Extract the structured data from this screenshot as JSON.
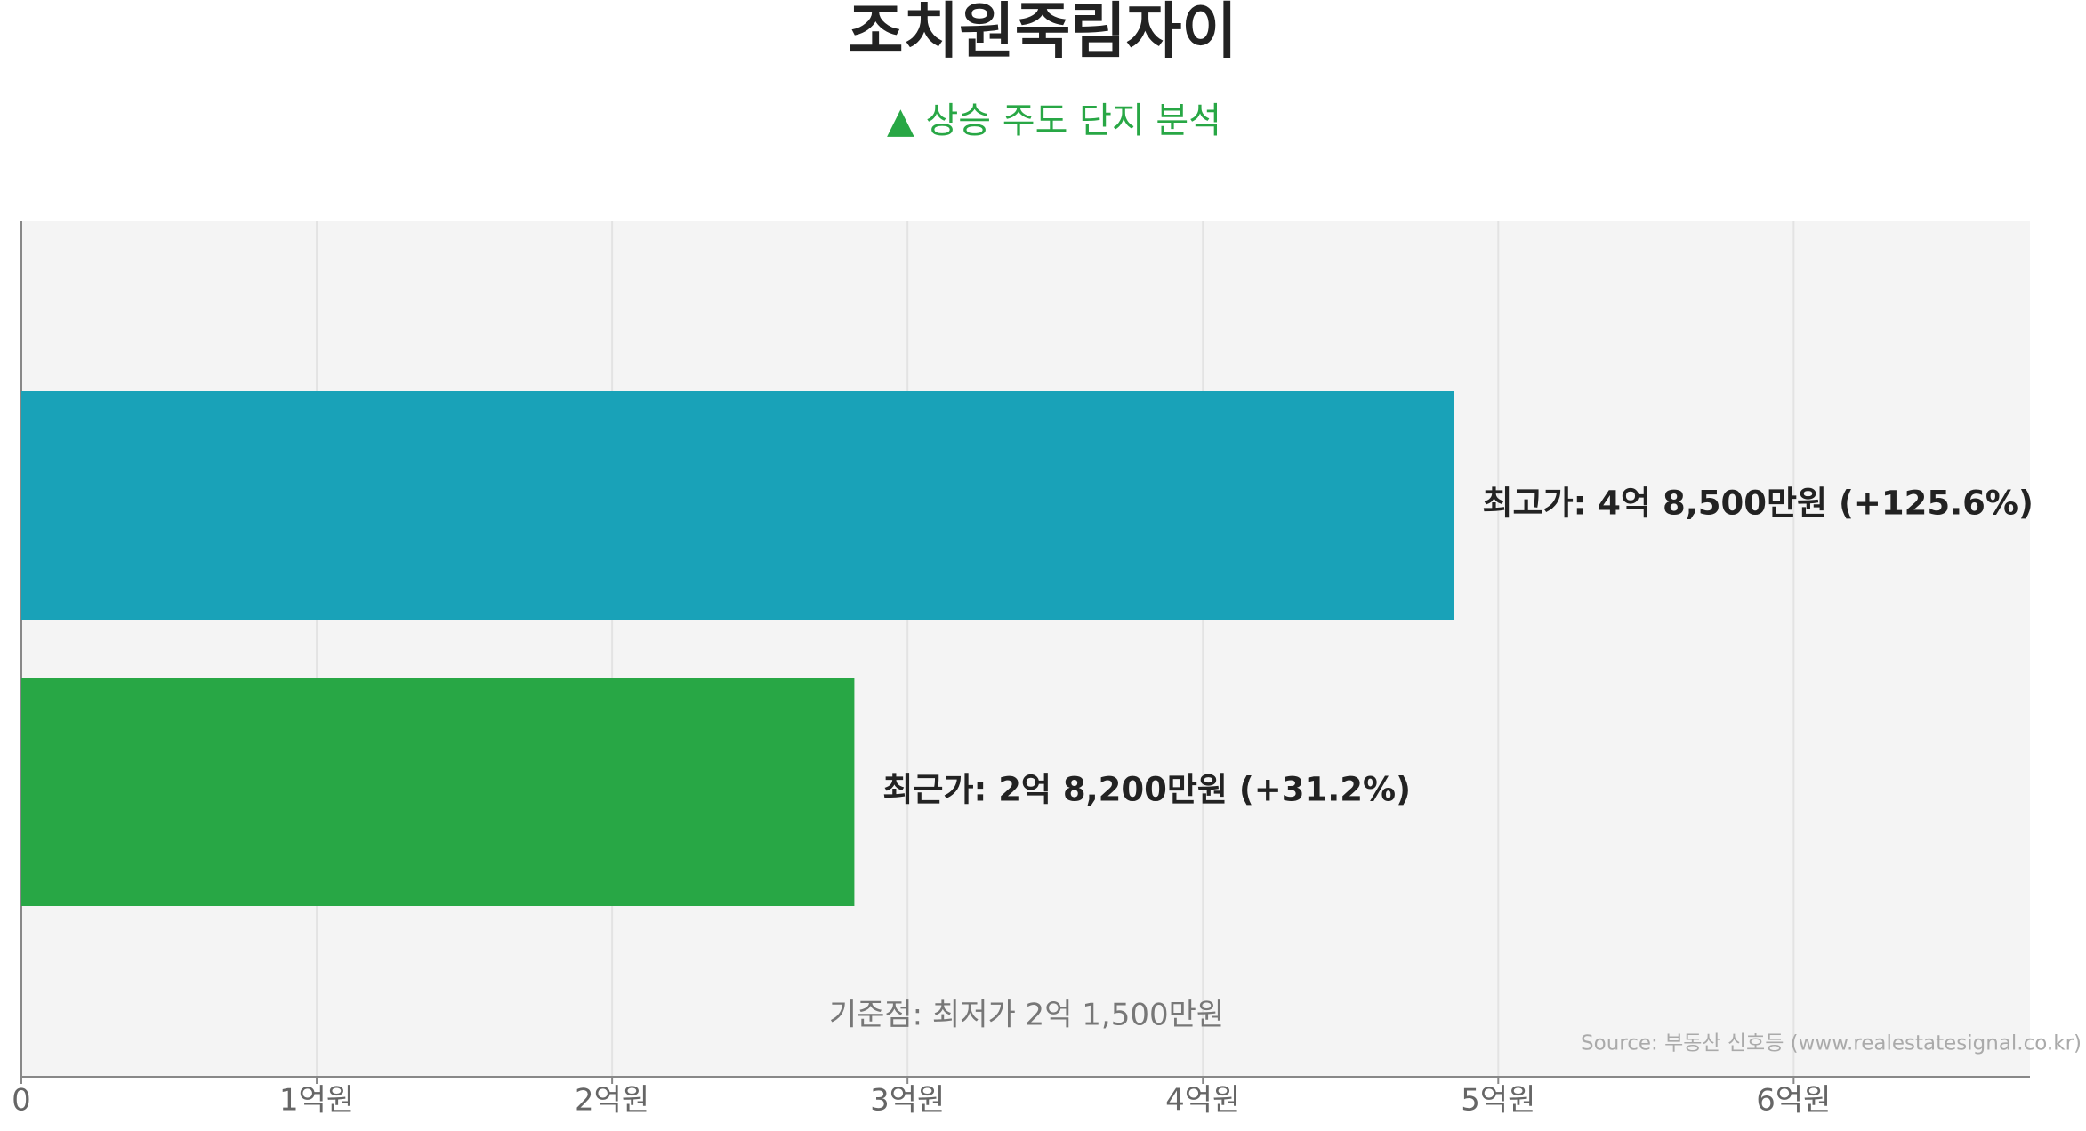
{
  "chart_data": {
    "type": "hbar",
    "title": "조치원죽림자이",
    "subtitle": "▲ 상승 주도 단지 분석",
    "categories": [
      null,
      null
    ],
    "values": [
      4.85,
      2.82
    ],
    "value_labels": [
      "최고가: 4억 8,500만원 (+125.6%)",
      "최근가: 2억 8,200만원 (+31.2%)"
    ],
    "colors": [
      "#19a2b8",
      "#28a745"
    ],
    "xlim": [
      0,
      6.8
    ],
    "xticks": [
      0,
      {
        "value": 1,
        "label": "1억원"
      },
      {
        "value": 2,
        "label": "2억원"
      },
      {
        "value": 3,
        "label": "3억원"
      },
      {
        "value": 4,
        "label": "4억원"
      },
      {
        "value": 5,
        "label": "5억원"
      },
      {
        "value": 6,
        "label": "6억원"
      }
    ],
    "grid": true,
    "annotation": "기준점: 최저가 2억 1,500만원",
    "source": "Source: 부동산 신호등 (www.realestatesignal.co.kr)"
  }
}
